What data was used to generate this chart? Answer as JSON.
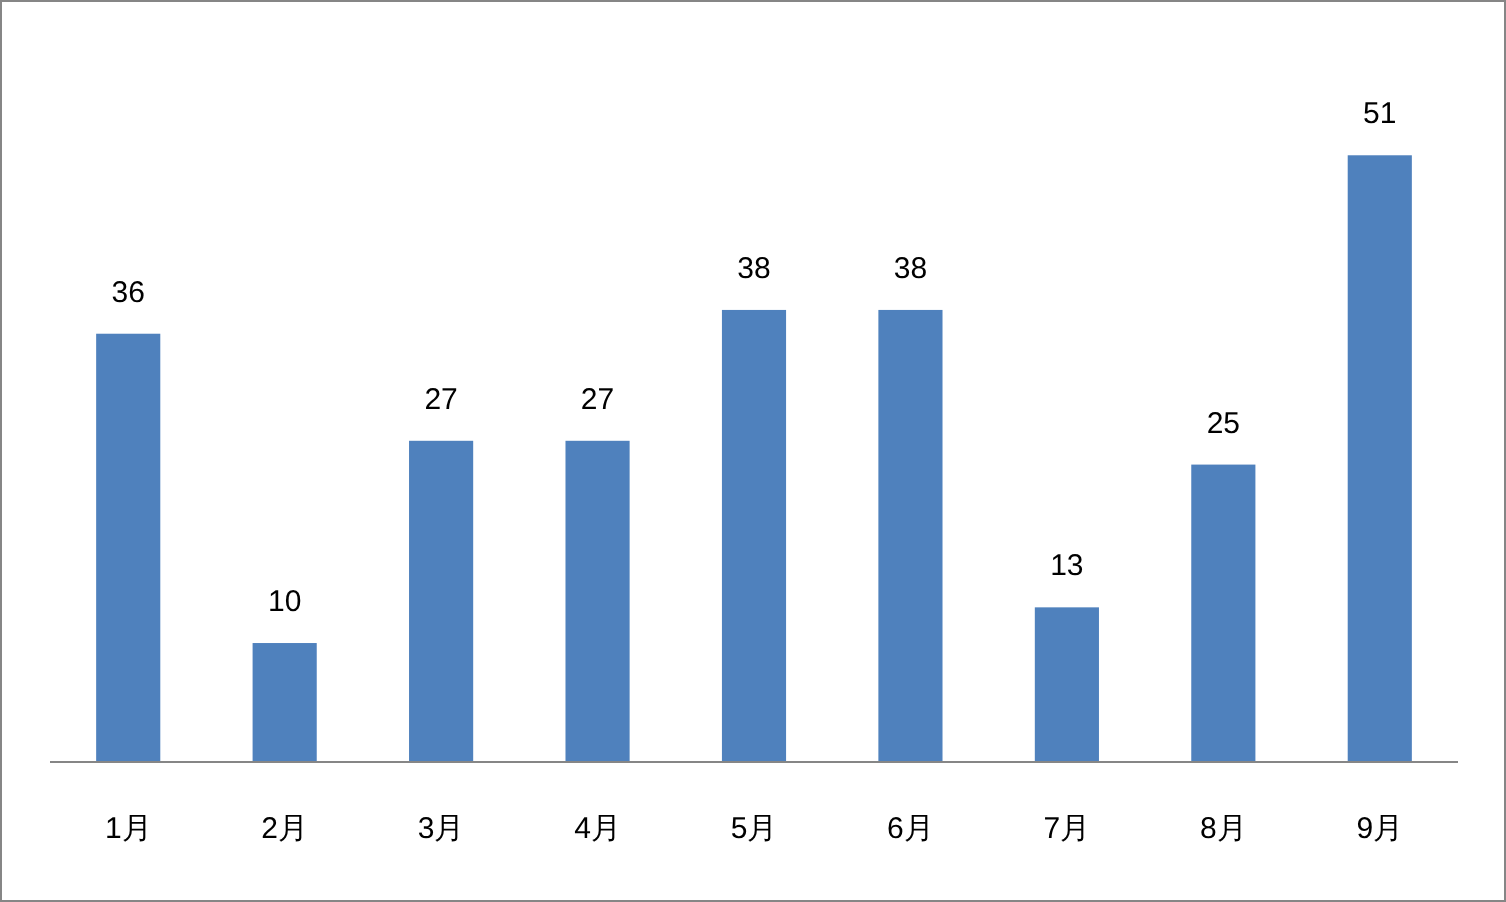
{
  "chart_data": {
    "type": "bar",
    "categories": [
      "1月",
      "2月",
      "3月",
      "4月",
      "5月",
      "6月",
      "7月",
      "8月",
      "9月"
    ],
    "values": [
      36,
      10,
      27,
      27,
      38,
      38,
      13,
      25,
      51
    ],
    "color": "#4f81bd",
    "data_labels": true
  }
}
